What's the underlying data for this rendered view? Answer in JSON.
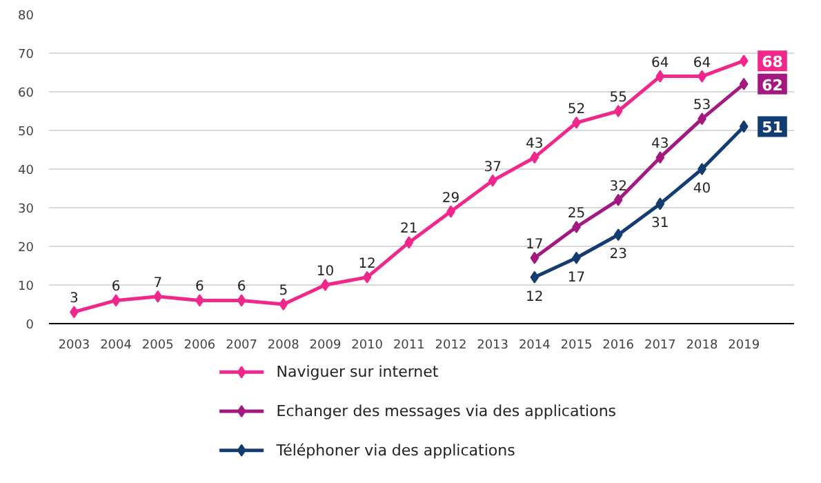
{
  "chart_data": {
    "type": "line",
    "categories": [
      "2003",
      "2004",
      "2005",
      "2006",
      "2007",
      "2008",
      "2009",
      "2010",
      "2011",
      "2012",
      "2013",
      "2014",
      "2015",
      "2016",
      "2017",
      "2018",
      "2019"
    ],
    "series": [
      {
        "name": "Naviguer sur internet",
        "color": "#f0288c",
        "values": [
          3,
          6,
          7,
          6,
          6,
          5,
          10,
          12,
          21,
          29,
          37,
          43,
          52,
          55,
          64,
          64,
          68
        ]
      },
      {
        "name": "Echanger des messages via des applications",
        "color": "#a3197f",
        "values": [
          null,
          null,
          null,
          null,
          null,
          null,
          null,
          null,
          null,
          null,
          null,
          17,
          25,
          32,
          43,
          53,
          62
        ]
      },
      {
        "name": "Téléphoner via des applications",
        "color": "#123c72",
        "values": [
          null,
          null,
          null,
          null,
          null,
          null,
          null,
          null,
          null,
          null,
          null,
          12,
          17,
          23,
          31,
          40,
          51
        ]
      }
    ],
    "ylim": [
      0,
      80
    ],
    "yticks": [
      0,
      10,
      20,
      30,
      40,
      50,
      60,
      70,
      80
    ],
    "grid": "y",
    "legend": "bottom",
    "marker": "diamond",
    "line_style": "solid",
    "data_labels": true
  }
}
